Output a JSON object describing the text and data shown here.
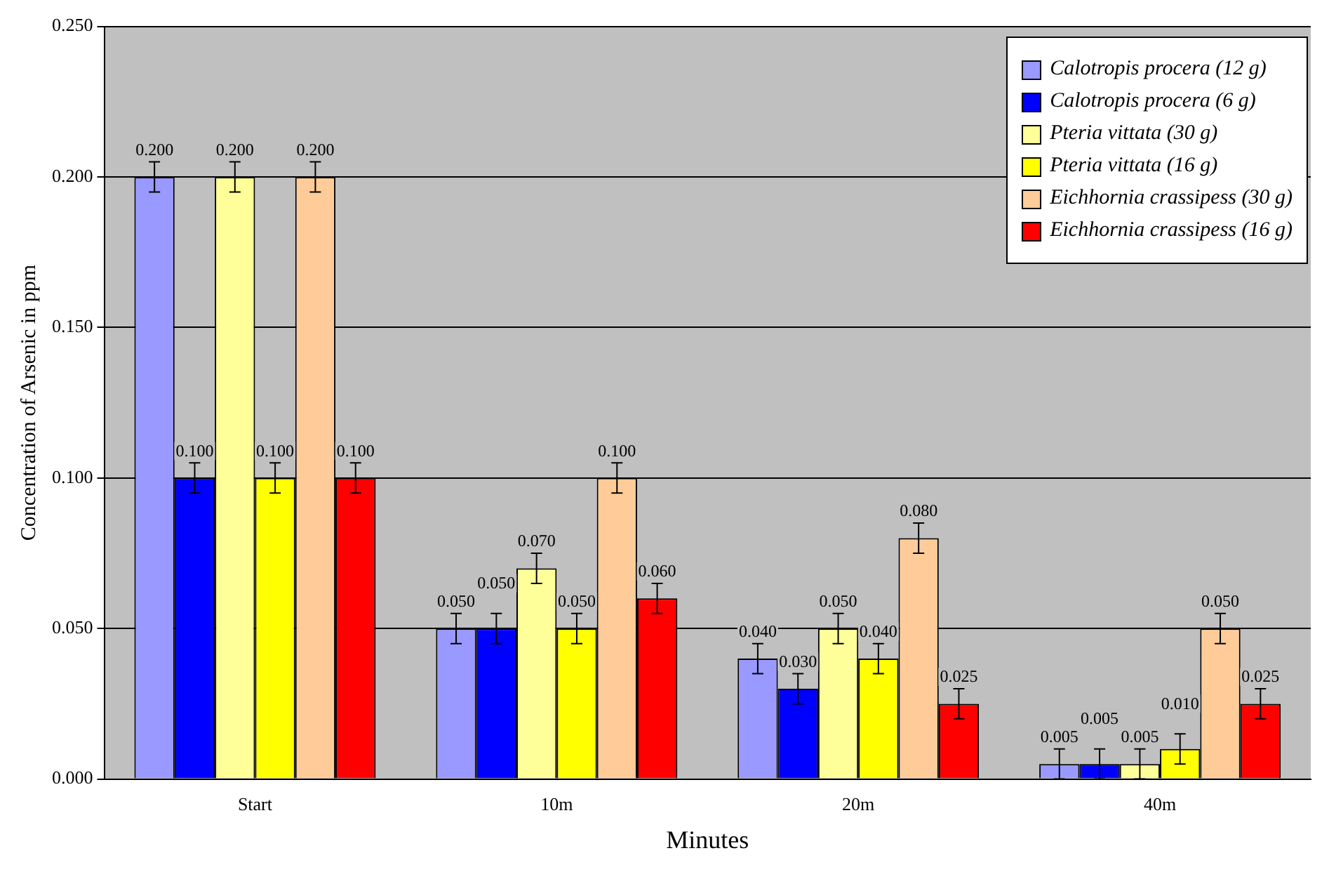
{
  "chart_data": {
    "type": "bar",
    "xlabel": "Minutes",
    "ylabel": "Concentration of Arsenic in ppm",
    "categories": [
      "Start",
      "10m",
      "20m",
      "40m"
    ],
    "series": [
      {
        "name": "Calotropis procera (12 g)",
        "color": "#9999ff",
        "values": [
          0.2,
          0.05,
          0.04,
          0.005
        ],
        "errors": [
          0.005,
          0.005,
          0.005,
          0.005
        ],
        "value_labels": [
          "0.200",
          "0.050",
          "0.040",
          "0.005"
        ]
      },
      {
        "name": "Calotropis procera (6 g)",
        "color": "#0000ff",
        "values": [
          0.1,
          0.05,
          0.03,
          0.005
        ],
        "errors": [
          0.005,
          0.005,
          0.005,
          0.005
        ],
        "value_labels": [
          "0.100",
          "0.050",
          "0.030",
          "0.005"
        ]
      },
      {
        "name": "Pteria vittata  (30 g)",
        "color": "#ffff99",
        "values": [
          0.2,
          0.07,
          0.05,
          0.005
        ],
        "errors": [
          0.005,
          0.005,
          0.005,
          0.005
        ],
        "value_labels": [
          "0.200",
          "0.070",
          "0.050",
          "0.005"
        ]
      },
      {
        "name": "Pteria vittata  (16 g)",
        "color": "#ffff00",
        "values": [
          0.1,
          0.05,
          0.04,
          0.01
        ],
        "errors": [
          0.005,
          0.005,
          0.005,
          0.005
        ],
        "value_labels": [
          "0.100",
          "0.050",
          "0.040",
          "0.010"
        ]
      },
      {
        "name": "Eichhornia crassipess (30 g)",
        "color": "#ffcc99",
        "values": [
          0.2,
          0.1,
          0.08,
          0.05
        ],
        "errors": [
          0.005,
          0.005,
          0.005,
          0.005
        ],
        "value_labels": [
          "0.200",
          "0.100",
          "0.080",
          "0.050"
        ]
      },
      {
        "name": "Eichhornia crassipess (16 g)",
        "color": "#ff0000",
        "values": [
          0.1,
          0.06,
          0.025,
          0.025
        ],
        "errors": [
          0.005,
          0.005,
          0.005,
          0.005
        ],
        "value_labels": [
          "0.100",
          "0.060",
          "0.025",
          "0.025"
        ]
      }
    ],
    "ylim": [
      0,
      0.25
    ],
    "yticks": [
      {
        "value": 0,
        "label": "0.000"
      },
      {
        "value": 0.05,
        "label": "0.050"
      },
      {
        "value": 0.1,
        "label": "0.100"
      },
      {
        "value": 0.15,
        "label": "0.150"
      },
      {
        "value": 0.2,
        "label": "0.200"
      },
      {
        "value": 0.25,
        "label": "0.250"
      }
    ],
    "grid": "y",
    "legend": "top right"
  }
}
